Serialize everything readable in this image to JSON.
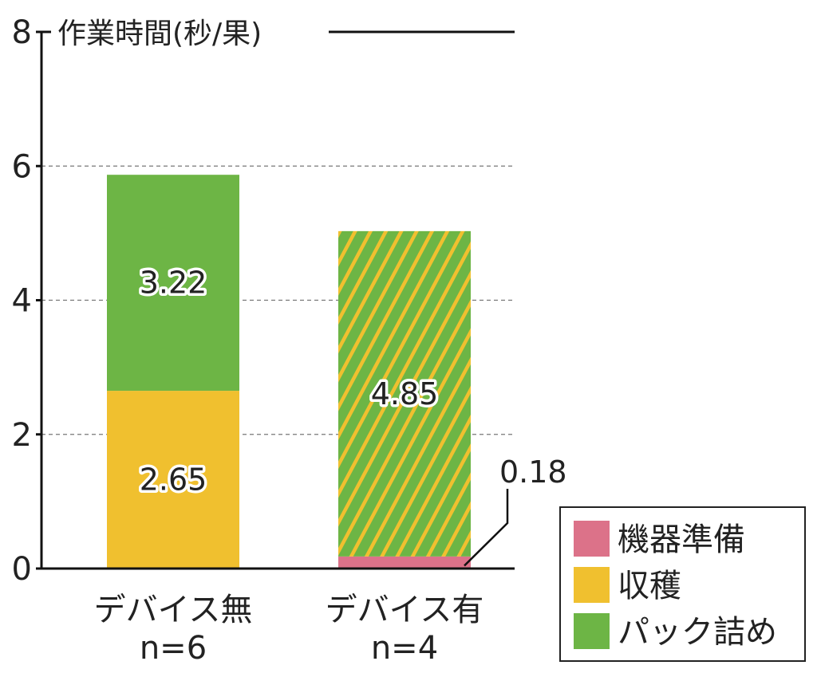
{
  "chart_data": {
    "type": "bar",
    "stacked": true,
    "title": "作業時間(秒/果)",
    "categories": [
      "デバイス無",
      "デバイス有"
    ],
    "category_sublabels": [
      "n=6",
      "n=4"
    ],
    "series": [
      {
        "name": "機器準備",
        "values": [
          0,
          0.18
        ],
        "labels": [
          "",
          "0.18"
        ],
        "color": "#dc7289"
      },
      {
        "name": "収穫",
        "values": [
          2.65,
          0
        ],
        "labels": [
          "2.65",
          ""
        ],
        "color": "#f0c02f"
      },
      {
        "name": "パック詰め",
        "values": [
          3.22,
          4.85
        ],
        "labels": [
          "3.22",
          "4.85"
        ],
        "color": "#6db545"
      }
    ],
    "hatched": [
      false,
      true
    ],
    "hatch_color": "#f0c02f",
    "yticks": [
      0,
      2,
      4,
      6,
      8
    ],
    "ylim": [
      0,
      8
    ],
    "grid": "dashed horizontal",
    "legend": "bottom-right"
  }
}
